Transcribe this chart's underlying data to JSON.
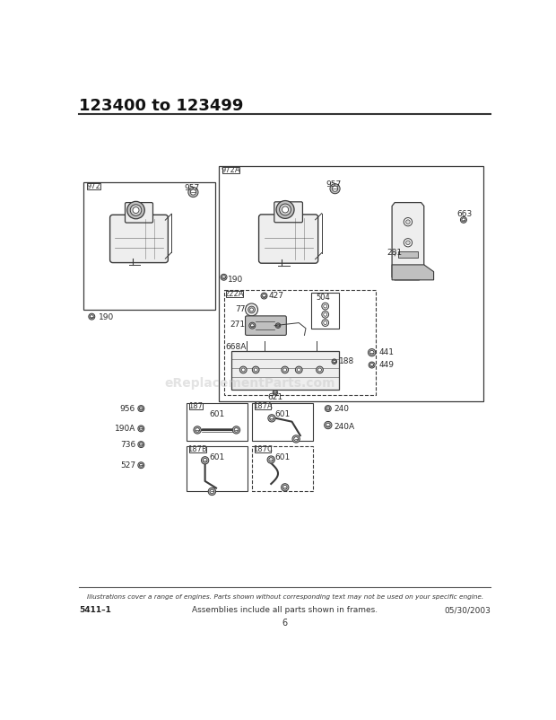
{
  "title": "123400 to 123499",
  "footer_italic": "Illustrations cover a range of engines. Parts shown without corresponding text may not be used on your specific engine.",
  "footer_left": "5411–1",
  "footer_center": "Assemblies include all parts shown in frames.",
  "footer_right": "05/30/2003",
  "footer_page": "6",
  "watermark": "eReplacementParts.com",
  "bg_color": "#ffffff",
  "line_color": "#3a3a3a",
  "gray_fill": "#d8d8d8",
  "light_gray": "#eeeeee",
  "mid_gray": "#c0c0c0"
}
